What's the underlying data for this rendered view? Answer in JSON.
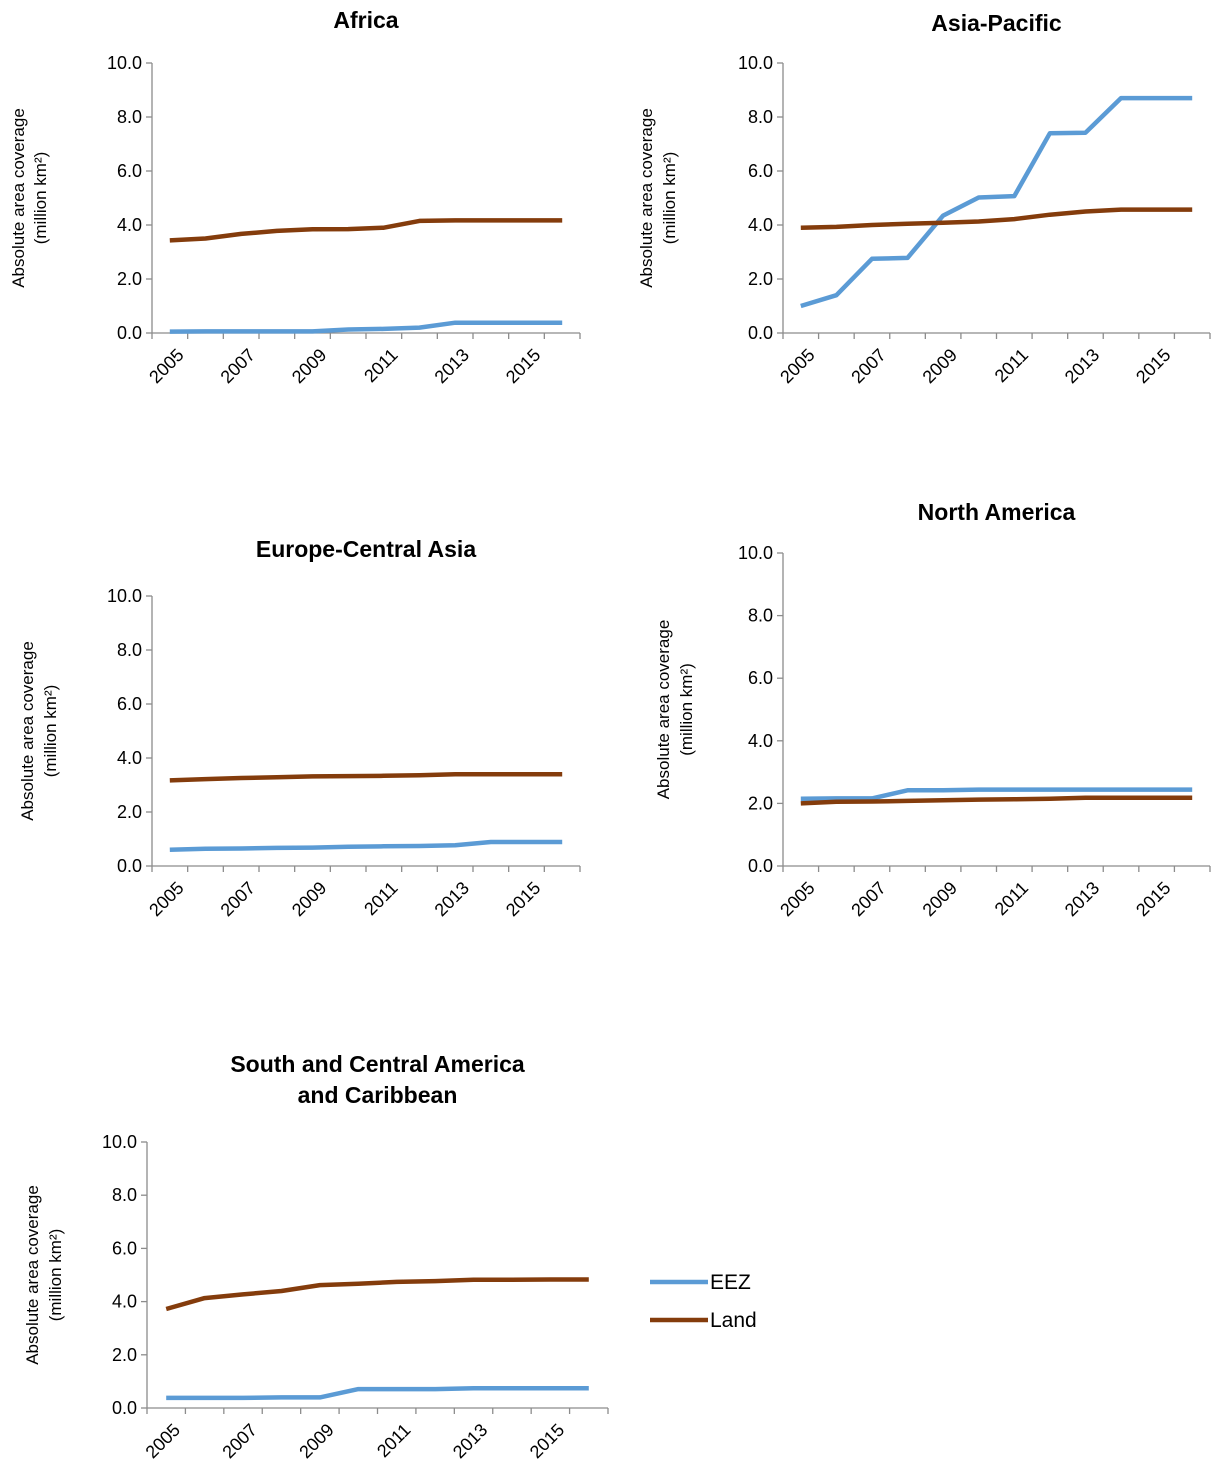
{
  "figure": {
    "legend": [
      {
        "name": "EEZ",
        "color": "#5b9bd5"
      },
      {
        "name": "Land",
        "color": "#843c0c"
      }
    ]
  },
  "chart_data": [
    {
      "type": "line",
      "title": "Africa",
      "ylabel": "Absolute area coverage",
      "ylabel_unit": "(million km²)",
      "xlabel": "",
      "ylim": [
        0,
        10
      ],
      "y_ticks": [
        "0.0",
        "2.0",
        "4.0",
        "6.0",
        "8.0",
        "10.0"
      ],
      "x": [
        "2005",
        "2006",
        "2007",
        "2008",
        "2009",
        "2010",
        "2011",
        "2012",
        "2013",
        "2014",
        "2015",
        "2016"
      ],
      "x_tick_labels": [
        "2005",
        "2007",
        "2009",
        "2011",
        "2013",
        "2015"
      ],
      "series": [
        {
          "name": "EEZ",
          "values": [
            0.05,
            0.06,
            0.06,
            0.06,
            0.06,
            0.13,
            0.15,
            0.2,
            0.38,
            0.38,
            0.38,
            0.38
          ]
        },
        {
          "name": "Land",
          "values": [
            3.43,
            3.5,
            3.67,
            3.78,
            3.84,
            3.85,
            3.9,
            4.15,
            4.17,
            4.17,
            4.17,
            4.17
          ]
        }
      ]
    },
    {
      "type": "line",
      "title": "Asia-Pacific",
      "ylabel": "Absolute area coverage",
      "ylabel_unit": "(million km²)",
      "xlabel": "",
      "ylim": [
        0,
        10
      ],
      "y_ticks": [
        "0.0",
        "2.0",
        "4.0",
        "6.0",
        "8.0",
        "10.0"
      ],
      "x": [
        "2005",
        "2006",
        "2007",
        "2008",
        "2009",
        "2010",
        "2011",
        "2012",
        "2013",
        "2014",
        "2015",
        "2016"
      ],
      "x_tick_labels": [
        "2005",
        "2007",
        "2009",
        "2011",
        "2013",
        "2015"
      ],
      "series": [
        {
          "name": "EEZ",
          "values": [
            1.0,
            1.4,
            2.75,
            2.78,
            4.35,
            5.02,
            5.07,
            7.4,
            7.42,
            8.7,
            8.7,
            8.7
          ]
        },
        {
          "name": "Land",
          "values": [
            3.9,
            3.93,
            4.0,
            4.05,
            4.08,
            4.13,
            4.22,
            4.38,
            4.5,
            4.57,
            4.57,
            4.57
          ]
        }
      ]
    },
    {
      "type": "line",
      "title": "Europe-Central Asia",
      "ylabel": "Absolute area coverage",
      "ylabel_unit": "(million km²)",
      "xlabel": "",
      "ylim": [
        0,
        10
      ],
      "y_ticks": [
        "0.0",
        "2.0",
        "4.0",
        "6.0",
        "8.0",
        "10.0"
      ],
      "x": [
        "2005",
        "2006",
        "2007",
        "2008",
        "2009",
        "2010",
        "2011",
        "2012",
        "2013",
        "2014",
        "2015",
        "2016"
      ],
      "x_tick_labels": [
        "2005",
        "2007",
        "2009",
        "2011",
        "2013",
        "2015"
      ],
      "series": [
        {
          "name": "EEZ",
          "values": [
            0.6,
            0.64,
            0.65,
            0.67,
            0.68,
            0.71,
            0.73,
            0.74,
            0.77,
            0.89,
            0.89,
            0.89
          ]
        },
        {
          "name": "Land",
          "values": [
            3.17,
            3.22,
            3.26,
            3.29,
            3.32,
            3.33,
            3.34,
            3.36,
            3.4,
            3.4,
            3.4,
            3.4
          ]
        }
      ]
    },
    {
      "type": "line",
      "title": "North America",
      "ylabel": "Absolute area coverage",
      "ylabel_unit": "(million km²)",
      "xlabel": "",
      "ylim": [
        0,
        10
      ],
      "y_ticks": [
        "0.0",
        "2.0",
        "4.0",
        "6.0",
        "8.0",
        "10.0"
      ],
      "x": [
        "2005",
        "2006",
        "2007",
        "2008",
        "2009",
        "2010",
        "2011",
        "2012",
        "2013",
        "2014",
        "2015",
        "2016"
      ],
      "x_tick_labels": [
        "2005",
        "2007",
        "2009",
        "2011",
        "2013",
        "2015"
      ],
      "series": [
        {
          "name": "EEZ",
          "values": [
            2.15,
            2.16,
            2.16,
            2.42,
            2.42,
            2.44,
            2.44,
            2.44,
            2.44,
            2.44,
            2.44,
            2.44
          ]
        },
        {
          "name": "Land",
          "values": [
            2.0,
            2.05,
            2.06,
            2.08,
            2.1,
            2.12,
            2.13,
            2.15,
            2.18,
            2.18,
            2.18,
            2.18
          ]
        }
      ]
    },
    {
      "type": "line",
      "title": "South and Central America and Caribbean",
      "title_lines": [
        "South and Central America",
        "and Caribbean"
      ],
      "ylabel": "Absolute area coverage",
      "ylabel_unit": "(million km²)",
      "xlabel": "",
      "ylim": [
        0,
        10
      ],
      "y_ticks": [
        "0.0",
        "2.0",
        "4.0",
        "6.0",
        "8.0",
        "10.0"
      ],
      "x": [
        "2005",
        "2006",
        "2007",
        "2008",
        "2009",
        "2010",
        "2011",
        "2012",
        "2013",
        "2014",
        "2015",
        "2016"
      ],
      "x_tick_labels": [
        "2005",
        "2007",
        "2009",
        "2011",
        "2013",
        "2015"
      ],
      "series": [
        {
          "name": "EEZ",
          "values": [
            0.38,
            0.38,
            0.38,
            0.4,
            0.4,
            0.71,
            0.71,
            0.71,
            0.74,
            0.74,
            0.74,
            0.74
          ]
        },
        {
          "name": "Land",
          "values": [
            3.72,
            4.13,
            4.27,
            4.4,
            4.62,
            4.67,
            4.74,
            4.77,
            4.82,
            4.82,
            4.83,
            4.83
          ]
        }
      ]
    }
  ]
}
